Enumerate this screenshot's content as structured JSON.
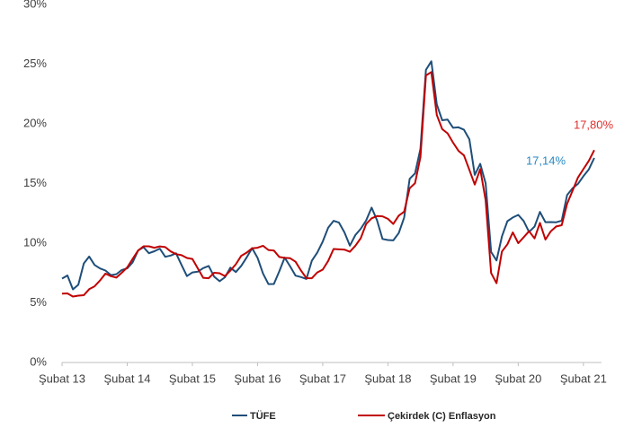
{
  "chart_data": {
    "type": "line",
    "categories": [
      "Şubat 13",
      null,
      null,
      null,
      null,
      null,
      null,
      null,
      null,
      null,
      null,
      null,
      "Şubat 14",
      null,
      null,
      null,
      null,
      null,
      null,
      null,
      null,
      null,
      null,
      null,
      "Şubat 15",
      null,
      null,
      null,
      null,
      null,
      null,
      null,
      null,
      null,
      null,
      null,
      "Şubat 16",
      null,
      null,
      null,
      null,
      null,
      null,
      null,
      null,
      null,
      null,
      null,
      "Şubat 17",
      null,
      null,
      null,
      null,
      null,
      null,
      null,
      null,
      null,
      null,
      null,
      "Şubat 18",
      null,
      null,
      null,
      null,
      null,
      null,
      null,
      null,
      null,
      null,
      null,
      "Şubat 19",
      null,
      null,
      null,
      null,
      null,
      null,
      null,
      null,
      null,
      null,
      null,
      "Şubat 20",
      null,
      null,
      null,
      null,
      null,
      null,
      null,
      null,
      null,
      null,
      null,
      "Şubat 21",
      null,
      null
    ],
    "series": [
      {
        "name": "TÜFE",
        "color": "#1f4e79",
        "values": [
          7.03,
          7.29,
          6.13,
          6.51,
          8.3,
          8.88,
          8.17,
          7.88,
          7.71,
          7.32,
          7.4,
          7.75,
          7.89,
          8.39,
          9.38,
          9.66,
          9.16,
          9.32,
          9.54,
          8.86,
          8.96,
          9.15,
          8.17,
          7.24,
          7.55,
          7.61,
          7.91,
          8.09,
          7.2,
          6.81,
          7.14,
          7.95,
          7.58,
          8.1,
          8.81,
          9.58,
          8.78,
          7.46,
          6.57,
          6.58,
          7.64,
          8.79,
          8.05,
          7.28,
          7.16,
          7.0,
          8.53,
          9.22,
          10.13,
          11.29,
          11.87,
          11.72,
          10.9,
          9.79,
          10.68,
          11.2,
          11.9,
          12.98,
          11.92,
          10.35,
          10.26,
          10.23,
          10.85,
          12.15,
          15.39,
          15.85,
          17.9,
          24.52,
          25.24,
          21.62,
          20.3,
          20.35,
          19.67,
          19.71,
          19.5,
          18.71,
          15.72,
          16.65,
          15.01,
          9.26,
          8.55,
          10.56,
          11.84,
          12.15,
          12.37,
          11.86,
          10.94,
          11.39,
          12.62,
          11.76,
          11.77,
          11.75,
          11.89,
          14.03,
          14.6,
          14.97,
          15.61,
          16.19,
          17.14
        ]
      },
      {
        "name": "Çekirdek (C) Enflasyon",
        "color": "#c00000",
        "values": [
          5.77,
          5.79,
          5.53,
          5.6,
          5.64,
          6.14,
          6.38,
          6.88,
          7.45,
          7.23,
          7.11,
          7.52,
          7.97,
          8.68,
          9.38,
          9.74,
          9.74,
          9.62,
          9.73,
          9.67,
          9.31,
          9.08,
          8.99,
          8.76,
          8.68,
          7.89,
          7.1,
          7.06,
          7.52,
          7.48,
          7.24,
          7.7,
          8.23,
          8.94,
          9.21,
          9.57,
          9.62,
          9.78,
          9.43,
          9.38,
          8.84,
          8.77,
          8.74,
          8.44,
          7.7,
          7.07,
          7.06,
          7.55,
          7.78,
          8.51,
          9.51,
          9.48,
          9.46,
          9.28,
          9.78,
          10.41,
          11.61,
          12.08,
          12.27,
          12.25,
          12.04,
          11.61,
          12.31,
          12.64,
          14.6,
          15.03,
          17.22,
          24.05,
          24.34,
          20.74,
          19.56,
          19.2,
          18.42,
          17.74,
          17.35,
          16.14,
          14.91,
          16.2,
          13.6,
          7.5,
          6.65,
          9.3,
          9.9,
          10.9,
          10.0,
          10.5,
          11.0,
          10.4,
          11.7,
          10.3,
          11.0,
          11.4,
          11.5,
          13.3,
          14.4,
          15.5,
          16.2,
          16.9,
          17.8
        ]
      }
    ],
    "ylim": [
      0,
      30
    ],
    "yticks": [
      {
        "value": 0,
        "label": "0%"
      },
      {
        "value": 5,
        "label": "5%"
      },
      {
        "value": 10,
        "label": "10%"
      },
      {
        "value": 15,
        "label": "15%"
      },
      {
        "value": 20,
        "label": "20%"
      },
      {
        "value": 25,
        "label": "25%"
      },
      {
        "value": 30,
        "label": "30%"
      }
    ],
    "annotations": [
      {
        "text": "17,14%",
        "color": "#2a8ac4"
      },
      {
        "text": "17,80%",
        "color": "#e03030"
      }
    ],
    "legend": "bottom"
  }
}
